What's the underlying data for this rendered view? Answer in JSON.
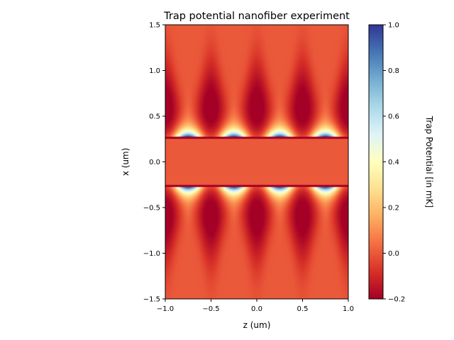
{
  "chart_data": {
    "type": "heatmap",
    "title": "Trap potential nanofiber experiment",
    "xlabel": "z (um)",
    "ylabel": "x (um)",
    "xlim": [
      -1.0,
      1.0
    ],
    "ylim": [
      -1.5,
      1.5
    ],
    "xticks": [
      "−1.0",
      "−0.5",
      "0.0",
      "0.5",
      "1.0"
    ],
    "xtick_values": [
      -1.0,
      -0.5,
      0.0,
      0.5,
      1.0
    ],
    "yticks": [
      "−1.5",
      "−1.0",
      "−0.5",
      "0.0",
      "0.5",
      "1.0",
      "1.5"
    ],
    "ytick_values": [
      -1.5,
      -1.0,
      -0.5,
      0.0,
      0.5,
      1.0,
      1.5
    ],
    "colormap": "RdYlBu",
    "colorbar": {
      "label": "Trap Potential [in mK]",
      "range": [
        -0.2,
        1.0
      ],
      "ticks": [
        "−0.2",
        "0.0",
        "0.2",
        "0.4",
        "0.6",
        "0.8",
        "1.0"
      ],
      "tick_values": [
        -0.2,
        0.0,
        0.2,
        0.4,
        0.6,
        0.8,
        1.0
      ]
    },
    "fiber_radius": 0.25,
    "lattice_period": 0.5,
    "attractive_minima_z": [
      -1.0,
      -0.5,
      0.0,
      0.5,
      1.0
    ],
    "repulsive_maxima_z": [
      -0.75,
      -0.25,
      0.25,
      0.75
    ],
    "min_value": -0.2,
    "max_value": 1.0,
    "grid": false
  }
}
